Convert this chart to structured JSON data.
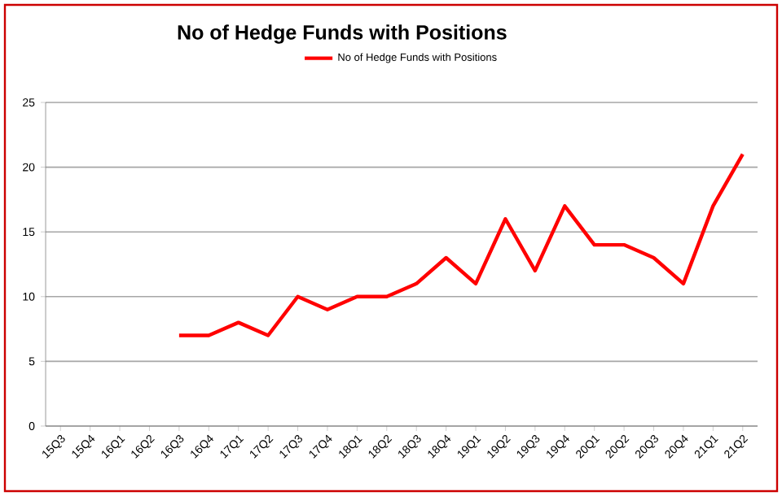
{
  "chart_data": {
    "type": "line",
    "title": "No of Hedge Funds with Positions",
    "categories": [
      "15Q3",
      "15Q4",
      "16Q1",
      "16Q2",
      "16Q3",
      "16Q4",
      "17Q1",
      "17Q2",
      "17Q3",
      "17Q4",
      "18Q1",
      "18Q2",
      "18Q3",
      "18Q4",
      "19Q1",
      "19Q2",
      "19Q3",
      "19Q4",
      "20Q1",
      "20Q2",
      "20Q3",
      "20Q4",
      "21Q1",
      "21Q2"
    ],
    "series": [
      {
        "name": "No of Hedge Funds with Positions",
        "color": "#ff0000",
        "values": [
          null,
          null,
          null,
          null,
          7,
          7,
          8,
          7,
          10,
          9,
          10,
          10,
          11,
          13,
          11,
          16,
          12,
          17,
          14,
          14,
          13,
          11,
          17,
          21
        ]
      }
    ],
    "ylim": [
      0,
      25
    ],
    "yticks": [
      0,
      5,
      10,
      15,
      20,
      25
    ],
    "grid": "y",
    "legend": "top",
    "marker": "none",
    "line_style": "solid"
  }
}
